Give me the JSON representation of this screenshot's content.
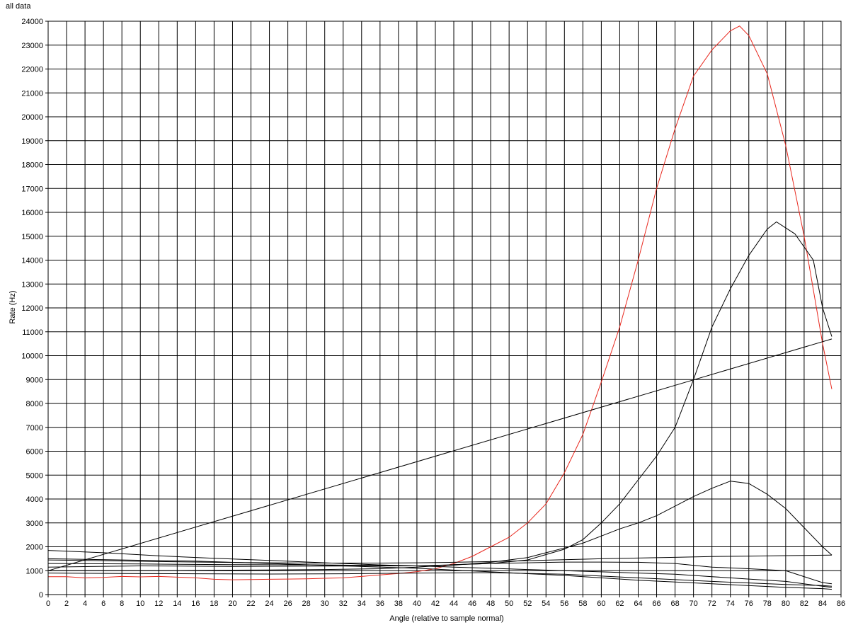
{
  "chart_data": {
    "type": "line",
    "title": "all data",
    "xlabel": "Angle (relative to sample normal)",
    "ylabel": "Rate (Hz)",
    "xlim": [
      0,
      86
    ],
    "ylim": [
      0,
      24000
    ],
    "x_ticks": [
      "0",
      "2",
      "4",
      "6",
      "8",
      "10",
      "12",
      "14",
      "16",
      "18",
      "20",
      "22",
      "24",
      "26",
      "28",
      "30",
      "32",
      "34",
      "36",
      "38",
      "40",
      "42",
      "44",
      "46",
      "48",
      "50",
      "52",
      "54",
      "56",
      "58",
      "60",
      "62",
      "64",
      "66",
      "68",
      "70",
      "72",
      "74",
      "76",
      "78",
      "80",
      "82",
      "84",
      "86"
    ],
    "y_ticks": [
      "0",
      "1000",
      "2000",
      "3000",
      "4000",
      "5000",
      "6000",
      "7000",
      "8000",
      "9000",
      "10000",
      "11000",
      "12000",
      "13000",
      "14000",
      "15000",
      "16000",
      "17000",
      "18000",
      "19000",
      "20000",
      "21000",
      "22000",
      "23000",
      "24000"
    ],
    "grid": true,
    "series": [
      {
        "color": "#e8281e",
        "x": [
          0,
          2,
          4,
          6,
          8,
          10,
          12,
          14,
          16,
          18,
          20,
          22,
          24,
          26,
          28,
          30,
          32,
          34,
          36,
          38,
          40,
          42,
          44,
          46,
          48,
          50,
          52,
          54,
          56,
          58,
          60,
          62,
          64,
          66,
          68,
          70,
          72,
          74,
          75,
          76,
          78,
          80,
          82,
          84,
          85
        ],
        "y": [
          750,
          750,
          700,
          720,
          760,
          740,
          760,
          730,
          700,
          640,
          620,
          630,
          640,
          650,
          660,
          680,
          700,
          760,
          820,
          880,
          960,
          1080,
          1300,
          1600,
          2000,
          2400,
          3000,
          3800,
          5100,
          6700,
          8900,
          11200,
          14000,
          17000,
          19500,
          21700,
          22800,
          23600,
          23800,
          23400,
          21800,
          18800,
          15000,
          10500,
          8600
        ]
      },
      {
        "color": "#000000",
        "x": [
          0,
          85
        ],
        "y": [
          1000,
          10700
        ]
      },
      {
        "color": "#000000",
        "x": [
          0,
          10,
          20,
          30,
          40,
          44,
          48,
          52,
          56,
          58,
          60,
          62,
          64,
          66,
          68,
          70,
          72,
          74,
          76,
          78,
          79,
          81,
          83,
          84,
          85
        ],
        "y": [
          1150,
          1200,
          1180,
          1190,
          1200,
          1250,
          1300,
          1450,
          1900,
          2300,
          3000,
          3800,
          4800,
          5800,
          7000,
          9000,
          11200,
          12800,
          14200,
          15300,
          15600,
          15100,
          14000,
          12000,
          10800
        ]
      },
      {
        "color": "#000000",
        "x": [
          0,
          10,
          20,
          30,
          40,
          44,
          48,
          52,
          54,
          56,
          58,
          60,
          62,
          64,
          66,
          68,
          70,
          72,
          74,
          75,
          76,
          78,
          80,
          82,
          84,
          85
        ],
        "y": [
          1300,
          1280,
          1250,
          1240,
          1200,
          1230,
          1350,
          1550,
          1750,
          1950,
          2150,
          2450,
          2750,
          3000,
          3300,
          3700,
          4100,
          4450,
          4750,
          4700,
          4650,
          4200,
          3600,
          2800,
          2000,
          1650
        ]
      },
      {
        "color": "#000000",
        "x": [
          0,
          6,
          12,
          18,
          24,
          30,
          36,
          40,
          44,
          48,
          52,
          56,
          60,
          64,
          68,
          72,
          76,
          80,
          85
        ],
        "y": [
          1450,
          1420,
          1380,
          1350,
          1330,
          1320,
          1320,
          1330,
          1350,
          1380,
          1420,
          1460,
          1500,
          1530,
          1560,
          1590,
          1610,
          1630,
          1650
        ]
      },
      {
        "color": "#000000",
        "x": [
          0,
          6,
          12,
          18,
          24,
          30,
          36,
          40,
          44,
          48,
          52,
          56,
          60,
          64,
          68,
          72,
          76,
          78,
          80,
          84,
          85
        ],
        "y": [
          1850,
          1750,
          1620,
          1520,
          1430,
          1330,
          1240,
          1200,
          1150,
          1100,
          1050,
          1000,
          950,
          900,
          850,
          750,
          650,
          600,
          550,
          350,
          300
        ]
      },
      {
        "color": "#000000",
        "x": [
          0,
          6,
          12,
          18,
          24,
          30,
          36,
          40,
          44,
          48,
          52,
          56,
          60,
          64,
          68,
          72,
          76,
          80,
          84,
          85
        ],
        "y": [
          1000,
          1000,
          1000,
          1020,
          1030,
          1050,
          1080,
          1150,
          1250,
          1300,
          1330,
          1360,
          1360,
          1350,
          1300,
          1150,
          1080,
          1000,
          500,
          450
        ]
      },
      {
        "color": "#000000",
        "x": [
          0,
          8,
          16,
          24,
          32,
          40,
          48,
          56,
          64,
          72,
          80,
          84,
          85
        ],
        "y": [
          900,
          880,
          870,
          860,
          870,
          900,
          920,
          850,
          700,
          550,
          420,
          380,
          350
        ]
      },
      {
        "color": "#000000",
        "x": [
          0,
          8,
          16,
          24,
          32,
          40,
          48,
          56,
          64,
          72,
          80,
          84,
          85
        ],
        "y": [
          1500,
          1450,
          1400,
          1300,
          1200,
          1100,
          950,
          800,
          600,
          450,
          300,
          250,
          220
        ]
      }
    ]
  }
}
